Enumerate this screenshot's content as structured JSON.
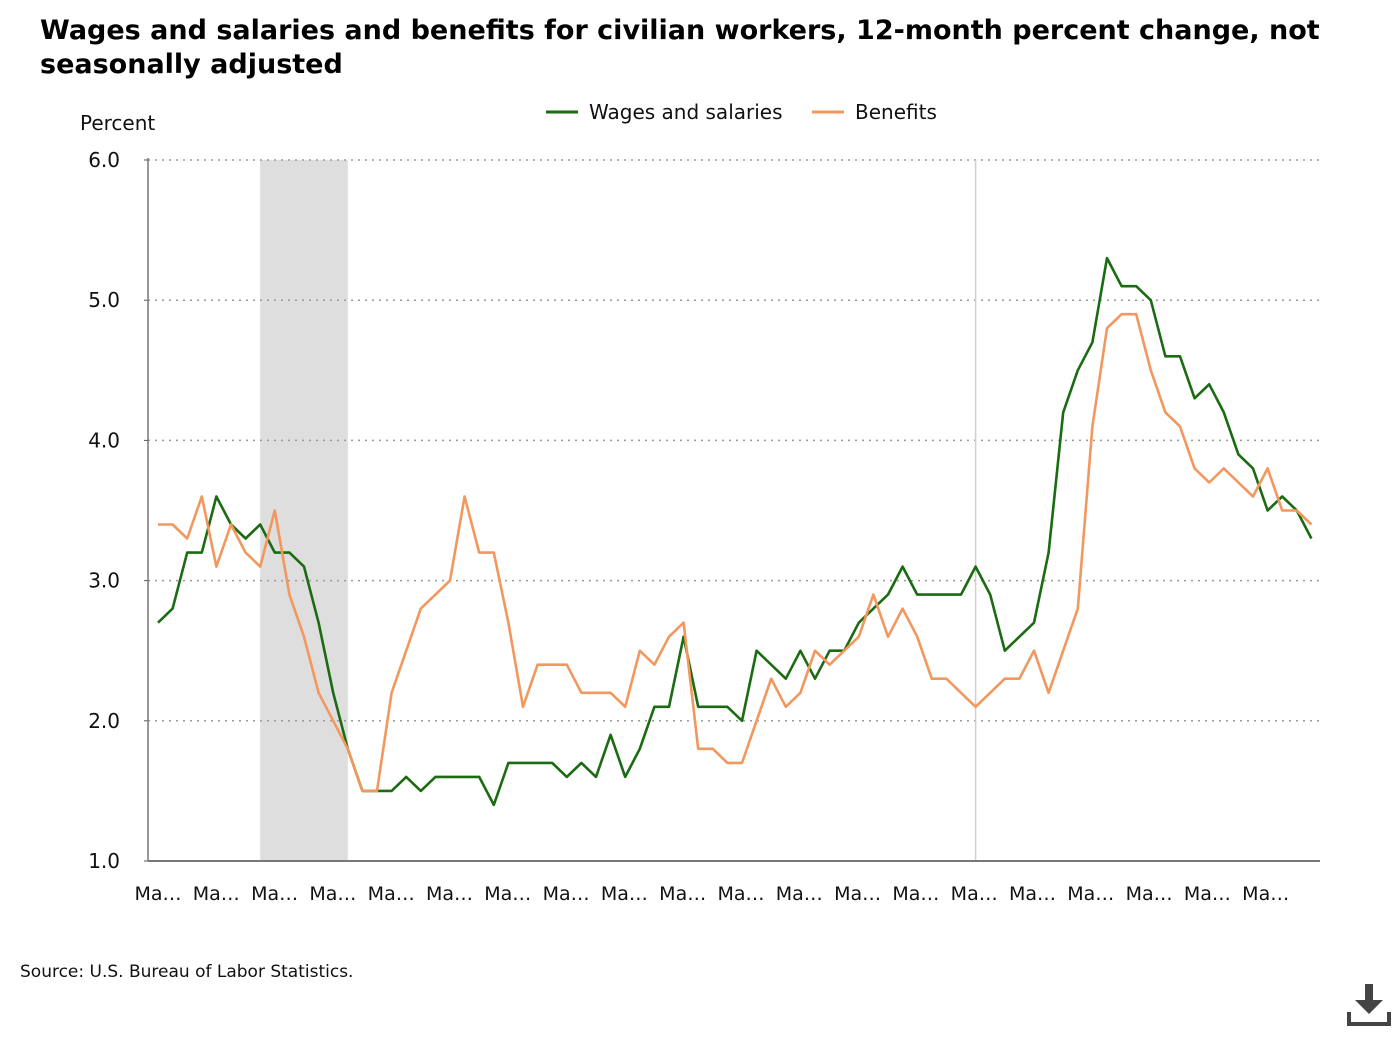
{
  "title": "Wages and salaries and benefits for civilian workers, 12-month percent change, not seasonally adjusted",
  "source": "Source: U.S. Bureau of Labor Statistics.",
  "icons": {
    "download": "download-icon"
  },
  "chart_data": {
    "type": "line",
    "ylabel": "Percent",
    "ylim": [
      1.0,
      6.0
    ],
    "yticks": [
      "1.0",
      "2.0",
      "3.0",
      "4.0",
      "5.0",
      "6.0"
    ],
    "grid": "horizontal dotted",
    "legend_position": "top-center",
    "x_tick_labels": [
      "Ma…",
      "Ma…",
      "Ma…",
      "Ma…",
      "Ma…",
      "Ma…",
      "Ma…",
      "Ma…",
      "Ma…",
      "Ma…",
      "Ma…",
      "Ma…",
      "Ma…",
      "Ma…",
      "Ma…",
      "Ma…",
      "Ma…",
      "Ma…",
      "Ma…",
      "Ma…"
    ],
    "shaded_region": {
      "from_index": 7,
      "to_index": 13,
      "color": "#dedede"
    },
    "reference_line_index": 56,
    "series": [
      {
        "name": "Wages and salaries",
        "color": "#1b6b12",
        "values": [
          2.7,
          2.8,
          3.2,
          3.2,
          3.6,
          3.4,
          3.3,
          3.4,
          3.2,
          3.2,
          3.1,
          2.7,
          2.2,
          1.8,
          1.5,
          1.5,
          1.5,
          1.6,
          1.5,
          1.6,
          1.6,
          1.6,
          1.6,
          1.4,
          1.7,
          1.7,
          1.7,
          1.7,
          1.6,
          1.7,
          1.6,
          1.9,
          1.6,
          1.8,
          2.1,
          2.1,
          2.6,
          2.1,
          2.1,
          2.1,
          2.0,
          2.5,
          2.4,
          2.3,
          2.5,
          2.3,
          2.5,
          2.5,
          2.7,
          2.8,
          2.9,
          3.1,
          2.9,
          2.9,
          2.9,
          2.9,
          3.1,
          2.9,
          2.5,
          2.6,
          2.7,
          3.2,
          4.2,
          4.5,
          4.7,
          5.3,
          5.1,
          5.1,
          5.0,
          4.6,
          4.6,
          4.3,
          4.4,
          4.2,
          3.9,
          3.8,
          3.5,
          3.6,
          3.5,
          3.3
        ]
      },
      {
        "name": "Benefits",
        "color": "#f2975e",
        "values": [
          3.4,
          3.4,
          3.3,
          3.6,
          3.1,
          3.4,
          3.2,
          3.1,
          3.5,
          2.9,
          2.6,
          2.2,
          2.0,
          1.8,
          1.5,
          1.5,
          2.2,
          2.5,
          2.8,
          2.9,
          3.0,
          3.6,
          3.2,
          3.2,
          2.7,
          2.1,
          2.4,
          2.4,
          2.4,
          2.2,
          2.2,
          2.2,
          2.1,
          2.5,
          2.4,
          2.6,
          2.7,
          1.8,
          1.8,
          1.7,
          1.7,
          2.0,
          2.3,
          2.1,
          2.2,
          2.5,
          2.4,
          2.5,
          2.6,
          2.9,
          2.6,
          2.8,
          2.6,
          2.3,
          2.3,
          2.2,
          2.1,
          2.2,
          2.3,
          2.3,
          2.5,
          2.2,
          2.5,
          2.8,
          4.1,
          4.8,
          4.9,
          4.9,
          4.5,
          4.2,
          4.1,
          3.8,
          3.7,
          3.8,
          3.7,
          3.6,
          3.8,
          3.5,
          3.5,
          3.4
        ]
      }
    ]
  }
}
